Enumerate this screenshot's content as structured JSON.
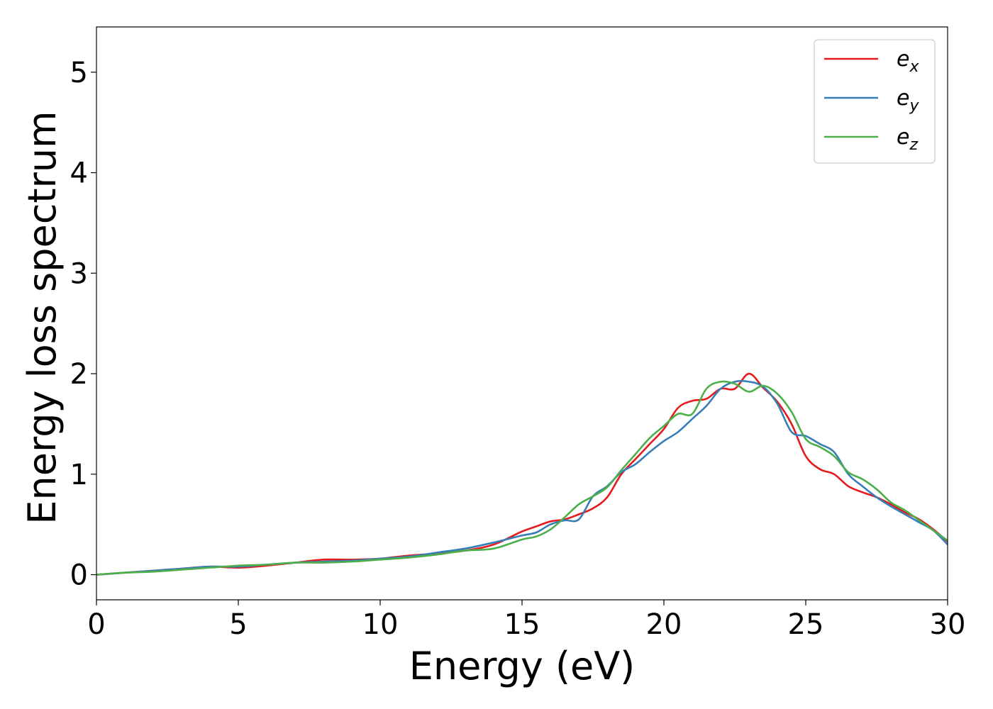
{
  "chart_data": {
    "type": "line",
    "title": "",
    "xlabel": "Energy (eV)",
    "ylabel": "Energy loss spectrum",
    "xlim": [
      0,
      30
    ],
    "ylim": [
      -0.25,
      5.45
    ],
    "xticks": [
      0,
      5,
      10,
      15,
      20,
      25,
      30
    ],
    "yticks": [
      0,
      1,
      2,
      3,
      4,
      5
    ],
    "grid": false,
    "legend_position": "top-right",
    "series": [
      {
        "name": "e_x",
        "label_base": "e",
        "label_sub": "x",
        "color": "#e41a1c",
        "x": [
          0,
          1,
          2,
          3,
          4,
          5,
          6,
          7,
          8,
          9,
          10,
          11,
          12,
          13,
          14,
          15,
          15.5,
          16,
          16.5,
          17,
          17.5,
          18,
          18.5,
          19,
          19.5,
          20,
          20.5,
          21,
          21.5,
          22,
          22.5,
          23,
          23.5,
          24,
          24.5,
          25,
          25.5,
          26,
          26.5,
          27,
          27.5,
          28,
          28.5,
          29,
          29.5,
          30
        ],
        "y": [
          0.0,
          0.02,
          0.04,
          0.06,
          0.08,
          0.07,
          0.09,
          0.12,
          0.15,
          0.15,
          0.16,
          0.19,
          0.21,
          0.24,
          0.3,
          0.43,
          0.48,
          0.53,
          0.55,
          0.6,
          0.66,
          0.77,
          1.0,
          1.15,
          1.3,
          1.45,
          1.66,
          1.73,
          1.75,
          1.85,
          1.85,
          2.0,
          1.86,
          1.72,
          1.5,
          1.18,
          1.05,
          1.0,
          0.88,
          0.82,
          0.77,
          0.7,
          0.62,
          0.55,
          0.45,
          0.33
        ]
      },
      {
        "name": "e_y",
        "label_base": "e",
        "label_sub": "y",
        "color": "#377eb8",
        "x": [
          0,
          1,
          2,
          3,
          4,
          5,
          6,
          7,
          8,
          9,
          10,
          11,
          12,
          13,
          14,
          15,
          15.5,
          16,
          16.5,
          17,
          17.5,
          18,
          18.5,
          19,
          19.5,
          20,
          20.5,
          21,
          21.5,
          22,
          22.5,
          23,
          23.5,
          24,
          24.5,
          25,
          25.5,
          26,
          26.5,
          27,
          27.5,
          28,
          28.5,
          29,
          29.5,
          30
        ],
        "y": [
          0.0,
          0.02,
          0.04,
          0.06,
          0.08,
          0.08,
          0.1,
          0.12,
          0.13,
          0.14,
          0.16,
          0.18,
          0.22,
          0.26,
          0.32,
          0.39,
          0.42,
          0.5,
          0.54,
          0.55,
          0.78,
          0.88,
          1.02,
          1.1,
          1.22,
          1.33,
          1.42,
          1.55,
          1.68,
          1.85,
          1.92,
          1.92,
          1.87,
          1.7,
          1.42,
          1.38,
          1.3,
          1.22,
          1.0,
          0.88,
          0.77,
          0.68,
          0.6,
          0.52,
          0.44,
          0.3
        ]
      },
      {
        "name": "e_z",
        "label_base": "e",
        "label_sub": "z",
        "color": "#4daf4a",
        "x": [
          0,
          1,
          2,
          3,
          4,
          5,
          6,
          7,
          8,
          9,
          10,
          11,
          12,
          13,
          14,
          15,
          15.5,
          16,
          16.5,
          17,
          17.5,
          18,
          18.5,
          19,
          19.5,
          20,
          20.5,
          21,
          21.5,
          22,
          22.5,
          23,
          23.5,
          24,
          24.5,
          25,
          25.5,
          26,
          26.5,
          27,
          27.5,
          28,
          28.5,
          29,
          29.5,
          30
        ],
        "y": [
          0.0,
          0.02,
          0.03,
          0.05,
          0.07,
          0.09,
          0.1,
          0.12,
          0.12,
          0.13,
          0.15,
          0.17,
          0.2,
          0.24,
          0.26,
          0.35,
          0.38,
          0.45,
          0.57,
          0.7,
          0.78,
          0.87,
          1.04,
          1.2,
          1.36,
          1.48,
          1.6,
          1.6,
          1.85,
          1.92,
          1.9,
          1.82,
          1.88,
          1.8,
          1.62,
          1.35,
          1.27,
          1.18,
          1.02,
          0.95,
          0.85,
          0.72,
          0.64,
          0.54,
          0.44,
          0.34
        ]
      }
    ]
  }
}
